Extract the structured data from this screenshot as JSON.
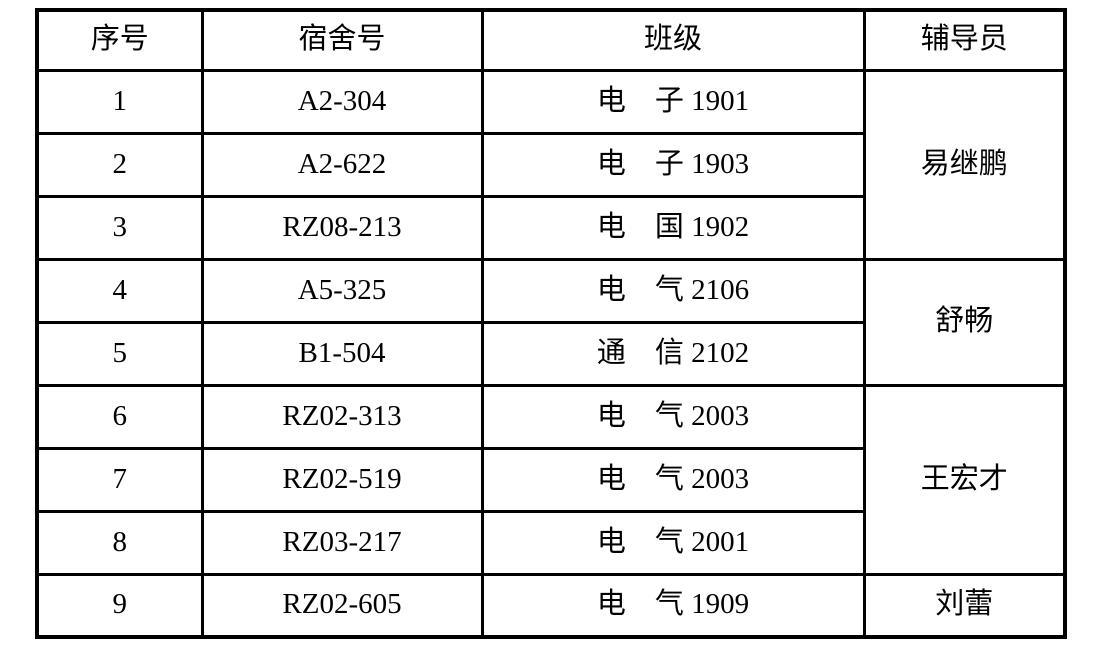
{
  "table": {
    "headers": {
      "seq": "序号",
      "dorm": "宿舍号",
      "class": "班级",
      "counselor": "辅导员"
    },
    "rows": [
      {
        "seq": "1",
        "dorm": "A2-304",
        "class": "电　子 1901"
      },
      {
        "seq": "2",
        "dorm": "A2-622",
        "class": "电　子 1903"
      },
      {
        "seq": "3",
        "dorm": "RZ08-213",
        "class": "电　国 1902"
      },
      {
        "seq": "4",
        "dorm": "A5-325",
        "class": "电　气 2106"
      },
      {
        "seq": "5",
        "dorm": "B1-504",
        "class": "通　信 2102"
      },
      {
        "seq": "6",
        "dorm": "RZ02-313",
        "class": "电　气 2003"
      },
      {
        "seq": "7",
        "dorm": "RZ02-519",
        "class": "电　气 2003"
      },
      {
        "seq": "8",
        "dorm": "RZ03-217",
        "class": "电　气 2001"
      },
      {
        "seq": "9",
        "dorm": "RZ02-605",
        "class": "电　气 1909"
      }
    ],
    "counselors": [
      {
        "name": "易继鹏",
        "rowspan": 3
      },
      {
        "name": "舒畅",
        "rowspan": 2
      },
      {
        "name": "王宏才",
        "rowspan": 3
      },
      {
        "name": "刘蕾",
        "rowspan": 1
      }
    ],
    "colors": {
      "border": "#000000",
      "text": "#000000",
      "background": "#ffffff"
    }
  }
}
